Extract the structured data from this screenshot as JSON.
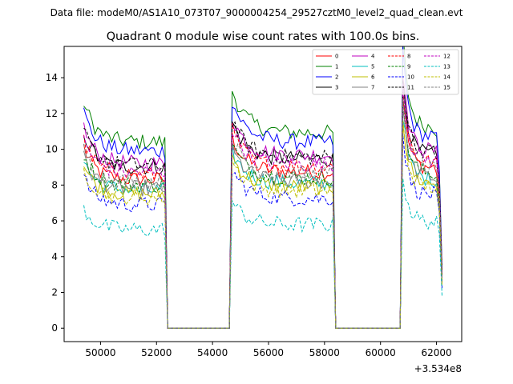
{
  "chart_data": {
    "type": "line",
    "suptitle": "Data file: modeM0/AS1A10_073T07_9000004254_29527cztM0_level2_quad_clean.evt",
    "title": "Quadrant 0 module wise count rates with 100.0s bins.",
    "xlabel": "",
    "ylabel": "",
    "x_offset_label": "+3.534e8",
    "xlim": [
      48700,
      62900
    ],
    "ylim": [
      -0.75,
      15.75
    ],
    "x_ticks": [
      50000,
      52000,
      54000,
      56000,
      58000,
      60000,
      62000
    ],
    "x_tick_labels": [
      "50000",
      "52000",
      "54000",
      "56000",
      "58000",
      "60000",
      "62000"
    ],
    "y_ticks": [
      0,
      2,
      4,
      6,
      8,
      10,
      12,
      14
    ],
    "y_tick_labels": [
      "0",
      "2",
      "4",
      "6",
      "8",
      "10",
      "12",
      "14"
    ],
    "grid": false,
    "legend_position": "top-right",
    "segments": [
      {
        "start": 49400,
        "end": 52300
      },
      {
        "start": 54700,
        "end": 58300
      },
      {
        "start": 60800,
        "end": 62200
      }
    ],
    "series": [
      {
        "name": "0",
        "color": "#ff0000",
        "dashed": false,
        "level": 8.3
      },
      {
        "name": "1",
        "color": "#008000",
        "dashed": false,
        "level": 10.4
      },
      {
        "name": "2",
        "color": "#0000ff",
        "dashed": false,
        "level": 9.9
      },
      {
        "name": "3",
        "color": "#000000",
        "dashed": false,
        "level": 9.0
      },
      {
        "name": "4",
        "color": "#bf00bf",
        "dashed": false,
        "level": 9.2
      },
      {
        "name": "5",
        "color": "#00bfbf",
        "dashed": false,
        "level": 7.7
      },
      {
        "name": "6",
        "color": "#bfbf00",
        "dashed": false,
        "level": 7.5
      },
      {
        "name": "7",
        "color": "#808080",
        "dashed": false,
        "level": 7.8
      },
      {
        "name": "8",
        "color": "#ff0000",
        "dashed": true,
        "level": 8.6
      },
      {
        "name": "9",
        "color": "#008000",
        "dashed": true,
        "level": 8.0
      },
      {
        "name": "10",
        "color": "#0000ff",
        "dashed": true,
        "level": 6.9
      },
      {
        "name": "11",
        "color": "#000000",
        "dashed": true,
        "level": 9.1
      },
      {
        "name": "12",
        "color": "#bf00bf",
        "dashed": true,
        "level": 8.7
      },
      {
        "name": "13",
        "color": "#00bfbf",
        "dashed": true,
        "level": 5.5
      },
      {
        "name": "14",
        "color": "#bfbf00",
        "dashed": true,
        "level": 7.3
      },
      {
        "name": "15",
        "color": "#808080",
        "dashed": true,
        "level": 8.2
      }
    ]
  }
}
